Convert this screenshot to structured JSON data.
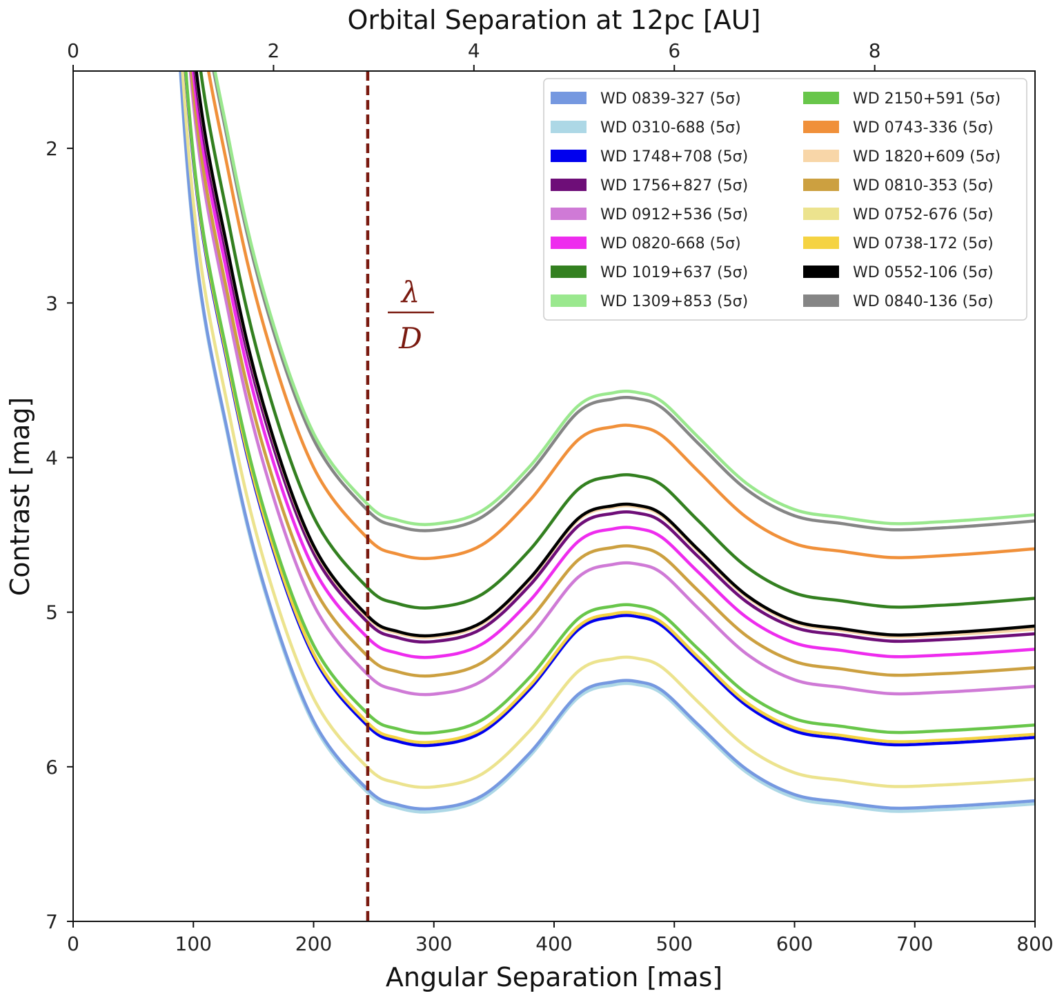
{
  "chart_data": {
    "type": "line",
    "title": "",
    "xlabel": "Angular Separation [mas]",
    "ylabel": "Contrast [mag]",
    "top_xlabel": "Orbital Separation at 12pc [AU]",
    "xlim": [
      0,
      800
    ],
    "ylim": [
      7,
      1.5
    ],
    "y_inverted": true,
    "top_xlim": [
      0,
      9.6
    ],
    "x_ticks": [
      "0",
      "100",
      "200",
      "300",
      "400",
      "500",
      "600",
      "700",
      "800"
    ],
    "y_ticks": [
      "2",
      "3",
      "4",
      "5",
      "6",
      "7"
    ],
    "top_x_ticks": [
      "0",
      "2",
      "4",
      "6",
      "8"
    ],
    "grid": false,
    "legend_position": "top-right",
    "legend_columns": 2,
    "vline": {
      "x": 245,
      "color": "#7a1a10",
      "style": "dashed"
    },
    "annotation": {
      "numerator": "λ",
      "denominator": "D",
      "x": 280,
      "y": 3.2
    },
    "profile_x": [
      60,
      80,
      100,
      130,
      160,
      200,
      245,
      270,
      300,
      340,
      380,
      420,
      450,
      470,
      490,
      520,
      560,
      600,
      640,
      680,
      720,
      760,
      800
    ],
    "series": [
      {
        "name": "WD 0839-327 (5σ)",
        "color": "#7598e0",
        "min": 6.27,
        "peak": 5.45,
        "end": 6.22
      },
      {
        "name": "WD 0310-688 (5σ)",
        "color": "#add8e6",
        "min": 6.29,
        "peak": 5.47,
        "end": 6.24
      },
      {
        "name": "WD 1748+708 (5σ)",
        "color": "#0000ee",
        "min": 5.86,
        "peak": 5.03,
        "end": 5.81
      },
      {
        "name": "WD 1756+827 (5σ)",
        "color": "#6e0e78",
        "min": 5.19,
        "peak": 4.36,
        "end": 5.14
      },
      {
        "name": "WD 0912+536 (5σ)",
        "color": "#cf7ad6",
        "min": 5.53,
        "peak": 4.69,
        "end": 5.48
      },
      {
        "name": "WD 0820-668 (5σ)",
        "color": "#ee2cee",
        "min": 5.29,
        "peak": 4.46,
        "end": 5.24
      },
      {
        "name": "WD 1019+637 (5σ)",
        "color": "#338020",
        "min": 4.97,
        "peak": 4.12,
        "end": 4.91
      },
      {
        "name": "WD 1309+853 (5σ)",
        "color": "#9ae88e",
        "min": 4.43,
        "peak": 3.58,
        "end": 4.37
      },
      {
        "name": "WD 2150+591 (5σ)",
        "color": "#68c64a",
        "min": 5.78,
        "peak": 4.96,
        "end": 5.73
      },
      {
        "name": "WD 0743-336 (5σ)",
        "color": "#f0903a",
        "min": 4.65,
        "peak": 3.8,
        "end": 4.59
      },
      {
        "name": "WD 1820+609 (5σ)",
        "color": "#f8d6a8",
        "min": 5.16,
        "peak": 4.32,
        "end": 5.11
      },
      {
        "name": "WD 0810-353 (5σ)",
        "color": "#cca040",
        "min": 5.41,
        "peak": 4.58,
        "end": 5.36
      },
      {
        "name": "WD 0752-676 (5σ)",
        "color": "#ece38e",
        "min": 6.13,
        "peak": 5.3,
        "end": 6.08
      },
      {
        "name": "WD 0738-172 (5σ)",
        "color": "#f5d342",
        "min": 5.84,
        "peak": 5.01,
        "end": 5.79
      },
      {
        "name": "WD 0552-106 (5σ)",
        "color": "#000000",
        "min": 5.15,
        "peak": 4.31,
        "end": 5.09
      },
      {
        "name": "WD 0840-136 (5σ)",
        "color": "#858585",
        "min": 4.47,
        "peak": 3.62,
        "end": 4.41
      }
    ]
  }
}
